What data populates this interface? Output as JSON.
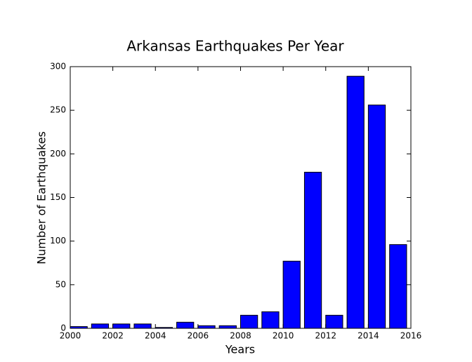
{
  "chart_data": {
    "type": "bar",
    "title": "Arkansas Earthquakes Per Year",
    "x_label": "Years",
    "y_label": "Number of Earthquakes",
    "x": [
      2000,
      2001,
      2002,
      2003,
      2004,
      2005,
      2006,
      2007,
      2008,
      2009,
      2010,
      2011,
      2012,
      2013,
      2014,
      2015
    ],
    "values": [
      2,
      5,
      5,
      5,
      1,
      7,
      3,
      3,
      15,
      19,
      77,
      179,
      15,
      289,
      256,
      96
    ],
    "color": "#0000ff",
    "xlim": [
      2000,
      2016
    ],
    "xticks": [
      2000,
      2002,
      2004,
      2006,
      2008,
      2010,
      2012,
      2014,
      2016
    ],
    "ylim": [
      0,
      300
    ],
    "yticks": [
      0,
      50,
      100,
      150,
      200,
      250,
      300
    ]
  }
}
